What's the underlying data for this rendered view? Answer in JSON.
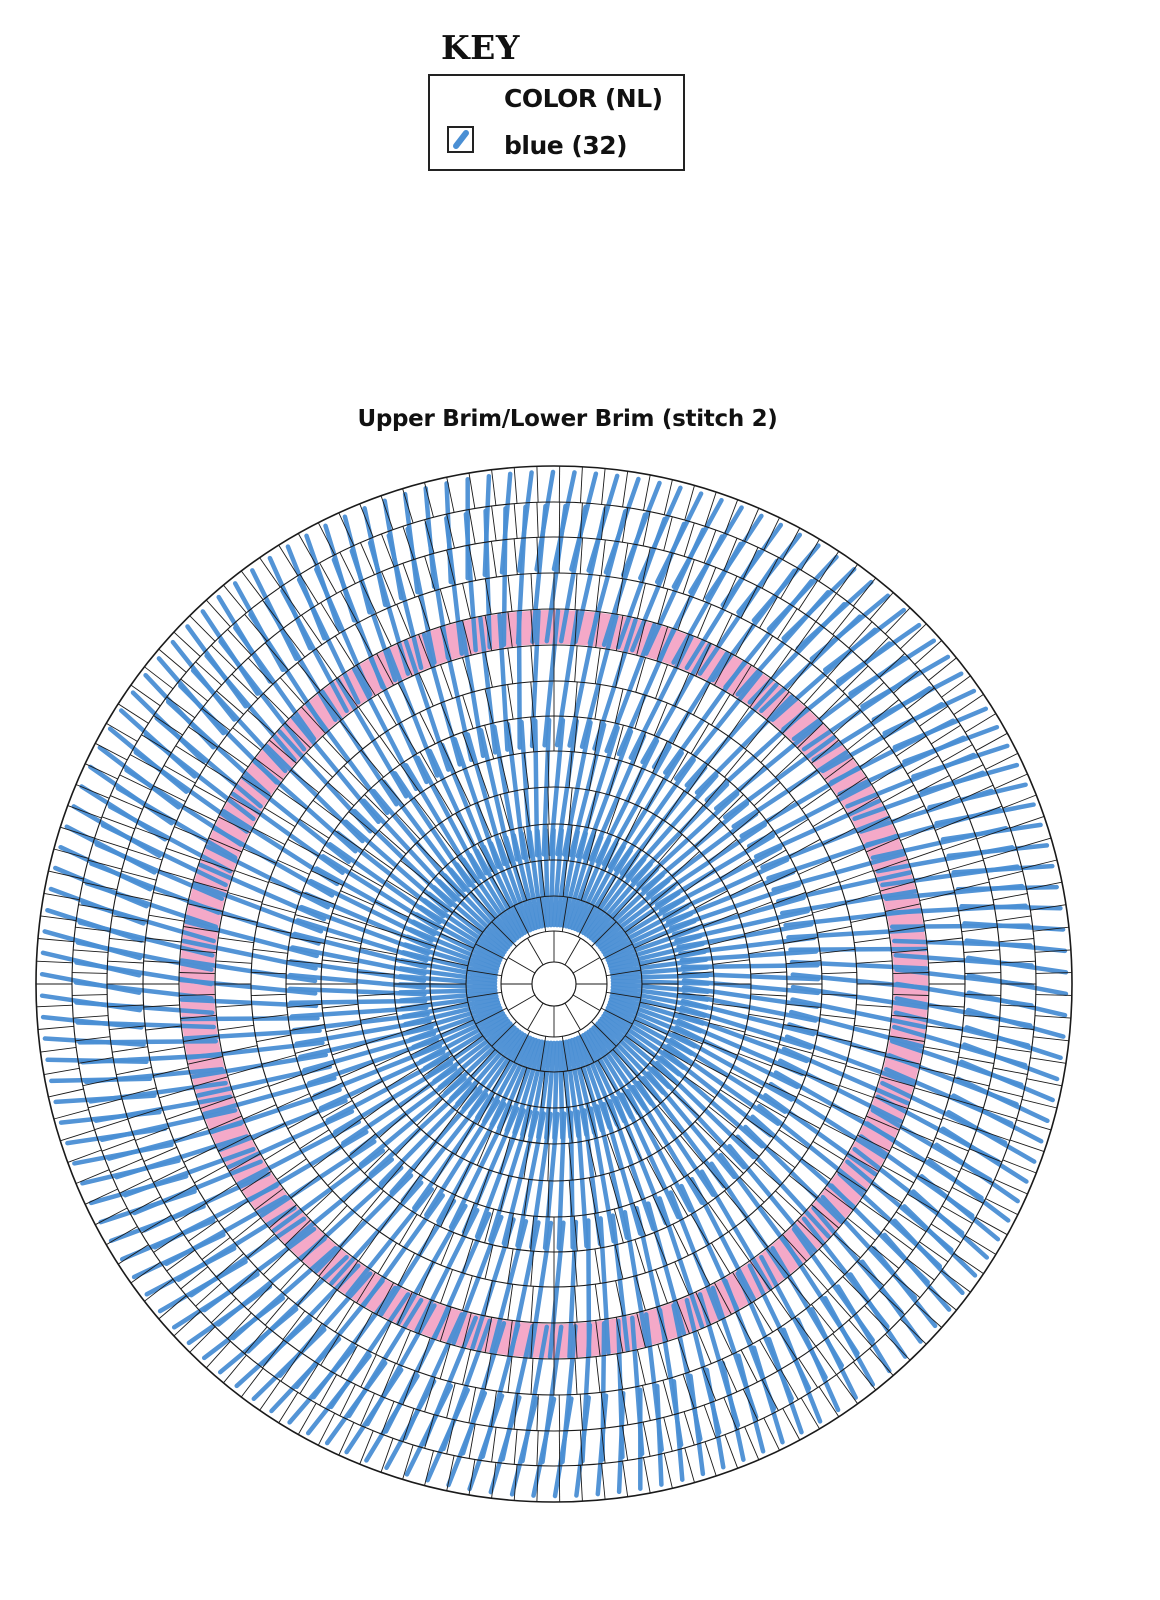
{
  "key": {
    "title": "KEY",
    "header": "COLOR (NL)",
    "items": [
      {
        "label": "blue (32)",
        "color": "#4a8fd4",
        "icon": "diagonal-stitch-icon"
      }
    ]
  },
  "chart": {
    "title": "Upper Brim/Lower Brim (stitch 2)",
    "stitch_color": "#4a8fd4",
    "highlight_ring_color": "#f4a9c8",
    "grid_line_color": "#1a1a1a"
  }
}
